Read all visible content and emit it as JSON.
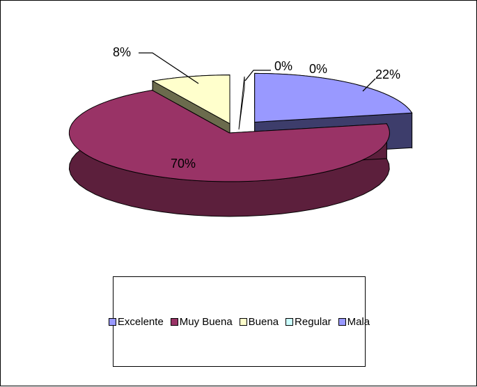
{
  "chart_data": {
    "type": "pie",
    "categories": [
      "Excelente",
      "Muy Buena",
      "Buena",
      "Regular",
      "Mala"
    ],
    "values": [
      22,
      70,
      8,
      0,
      0
    ],
    "labels": [
      "22%",
      "70%",
      "8%",
      "0%",
      "0%"
    ],
    "colors": [
      "#9999ff",
      "#993366",
      "#ffffcc",
      "#ccffff",
      "#9999ff"
    ],
    "side_colors": [
      "#3d3d6b",
      "#5c1f3c",
      "#6b6b4d",
      "#88aaaa",
      "#3d3d6b"
    ],
    "legend_position": "bottom",
    "exploded": true,
    "three_d": true
  }
}
